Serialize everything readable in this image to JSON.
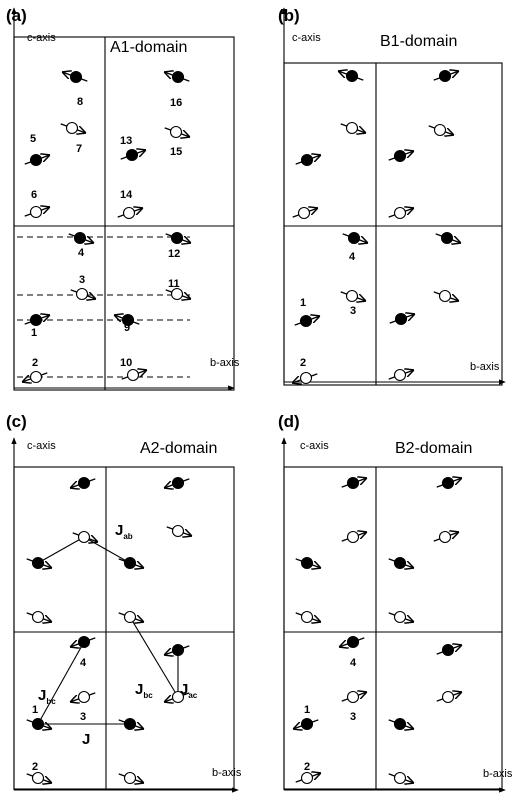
{
  "panels": [
    {
      "id": "a",
      "letter": "(a)",
      "domain": "A1-domain",
      "c_axis": "c-axis",
      "b_axis": "b-axis",
      "spins": [
        {
          "u": 0.2,
          "v": 0.04,
          "filled": false,
          "dir": "right-up",
          "num": "2"
        },
        {
          "u": 0.2,
          "v": 0.22,
          "filled": true,
          "dir": "right-up",
          "num": "1"
        },
        {
          "u": 0.7,
          "v": 0.22,
          "filled": true,
          "dir": "right-up",
          "num": "9"
        },
        {
          "u": 0.7,
          "v": 0.04,
          "filled": false,
          "dir": "right-up",
          "num": "10"
        },
        {
          "u": 0.7,
          "v": 0.33,
          "filled": false,
          "dir": "left-up",
          "num": "3"
        },
        {
          "u": 0.7,
          "v": 0.42,
          "filled": true,
          "dir": "left-up",
          "num": "4"
        },
        {
          "u": 0.7,
          "v": 0.65,
          "filled": false,
          "dir": "left-up",
          "num": "7"
        },
        {
          "u": 0.7,
          "v": 0.86,
          "filled": true,
          "dir": "left-up",
          "num": "8"
        },
        {
          "u": 0.2,
          "v": 0.65,
          "filled": true,
          "dir": "left-down",
          "num": "5"
        },
        {
          "u": 0.2,
          "v": 0.52,
          "filled": false,
          "dir": "right-up",
          "num": "6"
        },
        {
          "u": 0.2,
          "v": 0.33,
          "filled": false,
          "dir": "left-up",
          "num": "11"
        },
        {
          "u": 0.2,
          "v": 0.42,
          "filled": true,
          "dir": "left-up",
          "num": "12"
        },
        {
          "u": 0.2,
          "v": 0.65,
          "filled": true,
          "dir": "right-up",
          "num": "13"
        },
        {
          "u": 0.2,
          "v": 0.52,
          "filled": false,
          "dir": "right-up",
          "num": "14"
        },
        {
          "u": 0.7,
          "v": 0.65,
          "filled": false,
          "dir": "left-up",
          "num": "15"
        },
        {
          "u": 0.7,
          "v": 0.86,
          "filled": true,
          "dir": "left-up",
          "num": "16"
        }
      ]
    },
    {
      "id": "b",
      "letter": "(b)",
      "domain": "B1-domain",
      "c_axis": "c-axis",
      "b_axis": "b-axis",
      "spins": [
        {
          "num": "1"
        },
        {
          "num": "2"
        },
        {
          "num": "3"
        },
        {
          "num": "4"
        }
      ]
    },
    {
      "id": "c",
      "letter": "(c)",
      "domain": "A2-domain",
      "c_axis": "c-axis",
      "b_axis": "b-axis",
      "spins": [
        {
          "num": "1"
        },
        {
          "num": "2"
        },
        {
          "num": "3"
        },
        {
          "num": "4"
        }
      ],
      "couplings": {
        "j": "J",
        "jab": {
          "main": "J",
          "sub": "ab"
        },
        "jbc_left": {
          "main": "J",
          "sub": "bc"
        },
        "jbc_right": {
          "main": "J",
          "sub": "bc"
        },
        "jac": {
          "main": "J",
          "sub": "ac"
        }
      }
    },
    {
      "id": "d",
      "letter": "(d)",
      "domain": "B2-domain",
      "c_axis": "c-axis",
      "b_axis": "b-axis",
      "spins": [
        {
          "num": "1"
        },
        {
          "num": "2"
        },
        {
          "num": "3"
        },
        {
          "num": "4"
        }
      ]
    }
  ]
}
